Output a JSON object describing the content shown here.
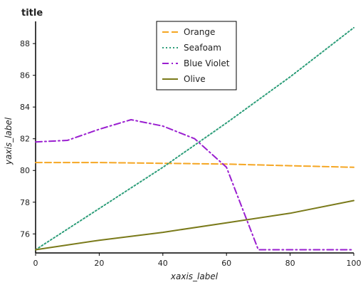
{
  "chart_data": {
    "type": "line",
    "title": "title",
    "xlabel": "xaxis_label",
    "ylabel": "yaxis_label",
    "xlim": [
      0,
      100
    ],
    "ylim": [
      74.8,
      89.4
    ],
    "xticks": [
      0,
      20,
      40,
      60,
      80,
      100
    ],
    "yticks": [
      76,
      78,
      80,
      82,
      84,
      86,
      88
    ],
    "grid": false,
    "legend_position": "top-center",
    "series": [
      {
        "name": "Orange",
        "color": "#f5a623",
        "dash": "dashed",
        "x": [
          0,
          20,
          40,
          60,
          80,
          100
        ],
        "y": [
          80.5,
          80.5,
          80.45,
          80.4,
          80.3,
          80.2
        ]
      },
      {
        "name": "Seafoam",
        "color": "#2e9e7a",
        "dash": "dotted",
        "x": [
          0,
          20,
          40,
          60,
          80,
          100
        ],
        "y": [
          75.0,
          77.6,
          80.2,
          83.0,
          85.9,
          89.0
        ]
      },
      {
        "name": "Blue Violet",
        "color": "#9a1fd0",
        "dash": "dashdot",
        "x": [
          0,
          10,
          20,
          30,
          40,
          50,
          60,
          70,
          80,
          90,
          100
        ],
        "y": [
          81.8,
          81.9,
          82.6,
          83.2,
          82.8,
          82.0,
          80.2,
          75.0,
          75.0,
          75.0,
          75.0
        ]
      },
      {
        "name": "Olive",
        "color": "#7a7a1a",
        "dash": "solid",
        "x": [
          0,
          20,
          40,
          60,
          80,
          100
        ],
        "y": [
          75.0,
          75.6,
          76.1,
          76.7,
          77.3,
          78.1
        ]
      }
    ]
  }
}
